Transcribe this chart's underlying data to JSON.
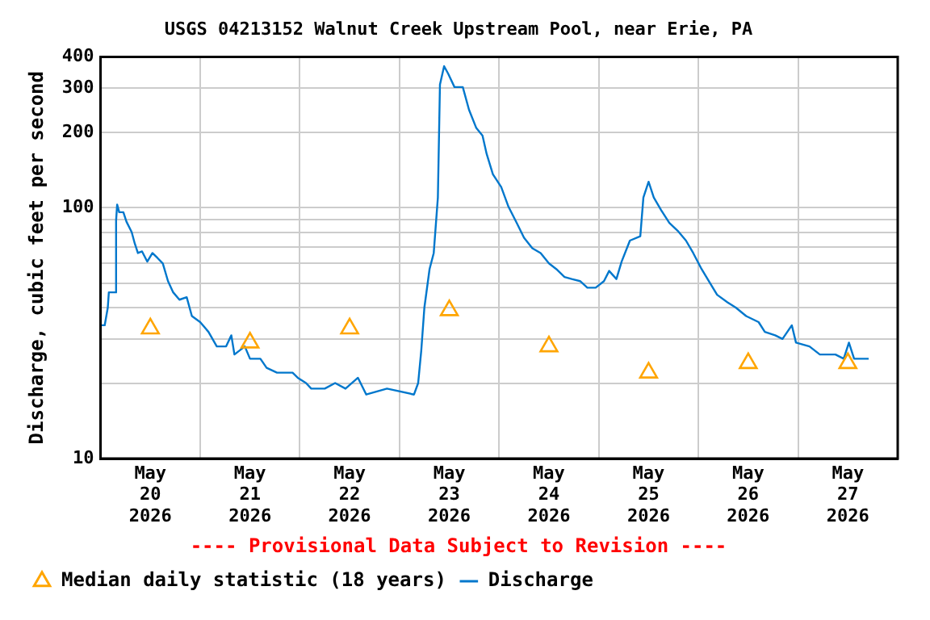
{
  "chart_data": {
    "type": "line",
    "title": "USGS 04213152 Walnut Creek Upstream Pool, near Erie, PA",
    "subtitle": "---- Provisional Data Subject to Revision ----",
    "ylabel": "Discharge, cubic feet per second",
    "log": true,
    "grid": true,
    "legend": "bottom",
    "ylim": [
      10,
      400
    ],
    "yticks": [
      10,
      {
        "value": 20,
        "label": null
      },
      {
        "value": 30,
        "label": null
      },
      {
        "value": 40,
        "label": null
      },
      {
        "value": 50,
        "label": null
      },
      {
        "value": 60,
        "label": null
      },
      {
        "value": 70,
        "label": null
      },
      {
        "value": 80,
        "label": null
      },
      {
        "value": 90,
        "label": null
      },
      100,
      200,
      300,
      400
    ],
    "xlim": [
      "2026-05-20T00:00",
      "2026-05-28T00:00"
    ],
    "xticks": [
      {
        "value": "2026-05-20T00:00",
        "label": null
      },
      {
        "value": "2026-05-20T12:00",
        "label": "May 20 2026"
      },
      {
        "value": "2026-05-21T00:00",
        "label": null
      },
      {
        "value": "2026-05-21T12:00",
        "label": "May 21 2026"
      },
      {
        "value": "2026-05-22T00:00",
        "label": null
      },
      {
        "value": "2026-05-22T12:00",
        "label": "May 22 2026"
      },
      {
        "value": "2026-05-23T00:00",
        "label": null
      },
      {
        "value": "2026-05-23T12:00",
        "label": "May 23 2026"
      },
      {
        "value": "2026-05-24T00:00",
        "label": null
      },
      {
        "value": "2026-05-24T12:00",
        "label": "May 24 2026"
      },
      {
        "value": "2026-05-25T00:00",
        "label": null
      },
      {
        "value": "2026-05-25T12:00",
        "label": "May 25 2026"
      },
      {
        "value": "2026-05-26T00:00",
        "label": null
      },
      {
        "value": "2026-05-26T12:00",
        "label": "May 26 2026"
      },
      {
        "value": "2026-05-27T00:00",
        "label": null
      },
      {
        "value": "2026-05-27T12:00",
        "label": "May 27 2026"
      },
      {
        "value": "2026-05-28T00:00",
        "label": null
      }
    ],
    "series": [
      {
        "name": "Median daily statistic (18 years)",
        "type": "scatter",
        "marker": "triangle",
        "color": "#ffa500",
        "x": [
          "2026-05-20T12:00",
          "2026-05-21T12:00",
          "2026-05-22T12:00",
          "2026-05-23T12:00",
          "2026-05-24T12:00",
          "2026-05-25T12:00",
          "2026-05-26T12:00",
          "2026-05-27T12:00"
        ],
        "values": [
          33,
          29,
          33,
          39,
          28,
          22,
          24,
          24
        ]
      },
      {
        "name": "Discharge",
        "marker": "none",
        "line_style": "solid",
        "color": "#0077cc",
        "x": [
          "2026-05-20T00:00",
          "2026-05-20T01:00",
          "2026-05-20T01:45",
          "2026-05-20T02:00",
          "2026-05-20T03:30",
          "2026-05-20T03:45",
          "2026-05-20T04:00",
          "2026-05-20T04:30",
          "2026-05-20T05:30",
          "2026-05-20T06:15",
          "2026-05-20T07:30",
          "2026-05-20T08:15",
          "2026-05-20T09:00",
          "2026-05-20T10:00",
          "2026-05-20T11:15",
          "2026-05-20T12:30",
          "2026-05-20T13:45",
          "2026-05-20T15:00",
          "2026-05-20T16:15",
          "2026-05-20T17:30",
          "2026-05-20T19:00",
          "2026-05-20T20:45",
          "2026-05-20T22:00",
          "2026-05-21T00:00",
          "2026-05-21T02:00",
          "2026-05-21T04:00",
          "2026-05-21T06:15",
          "2026-05-21T07:30",
          "2026-05-21T08:15",
          "2026-05-21T10:45",
          "2026-05-21T12:00",
          "2026-05-21T14:30",
          "2026-05-21T16:00",
          "2026-05-21T18:30",
          "2026-05-21T22:15",
          "2026-05-21T23:30",
          "2026-05-22T01:30",
          "2026-05-22T02:45",
          "2026-05-22T06:00",
          "2026-05-22T08:30",
          "2026-05-22T11:00",
          "2026-05-22T14:00",
          "2026-05-22T16:00",
          "2026-05-22T21:00",
          "2026-05-23T03:30",
          "2026-05-23T04:30",
          "2026-05-23T05:15",
          "2026-05-23T06:00",
          "2026-05-23T07:15",
          "2026-05-23T08:15",
          "2026-05-23T09:15",
          "2026-05-23T09:45",
          "2026-05-23T10:45",
          "2026-05-23T11:45",
          "2026-05-23T13:15",
          "2026-05-23T15:15",
          "2026-05-23T16:45",
          "2026-05-23T18:30",
          "2026-05-23T20:00",
          "2026-05-23T21:00",
          "2026-05-23T22:30",
          "2026-05-24T00:30",
          "2026-05-24T02:15",
          "2026-05-24T04:15",
          "2026-05-24T06:00",
          "2026-05-24T08:00",
          "2026-05-24T10:00",
          "2026-05-24T12:00",
          "2026-05-24T13:45",
          "2026-05-24T15:45",
          "2026-05-24T17:30",
          "2026-05-24T19:30",
          "2026-05-24T21:15",
          "2026-05-24T23:15",
          "2026-05-25T01:15",
          "2026-05-25T02:30",
          "2026-05-25T04:15",
          "2026-05-25T05:30",
          "2026-05-25T07:30",
          "2026-05-25T10:00",
          "2026-05-25T10:45",
          "2026-05-25T12:00",
          "2026-05-25T13:15",
          "2026-05-25T15:00",
          "2026-05-25T17:00",
          "2026-05-25T19:00",
          "2026-05-25T21:00",
          "2026-05-25T22:45",
          "2026-05-26T00:45",
          "2026-05-26T02:30",
          "2026-05-26T04:30",
          "2026-05-26T07:00",
          "2026-05-26T09:00",
          "2026-05-26T11:30",
          "2026-05-26T14:30",
          "2026-05-26T16:00",
          "2026-05-26T18:30",
          "2026-05-26T20:15",
          "2026-05-26T22:30",
          "2026-05-26T23:30",
          "2026-05-27T02:45",
          "2026-05-27T05:15",
          "2026-05-27T09:00",
          "2026-05-27T11:00",
          "2026-05-27T12:15",
          "2026-05-27T13:30",
          "2026-05-27T15:30",
          "2026-05-27T17:00"
        ],
        "values": [
          34,
          34,
          40,
          46,
          46,
          89,
          103,
          96,
          96,
          88,
          80,
          72,
          66,
          67,
          61,
          66,
          63,
          60,
          51,
          46,
          43,
          44,
          37,
          35,
          32,
          28,
          28,
          31,
          26,
          28,
          25,
          25,
          23,
          22,
          22,
          21,
          20,
          19,
          19,
          20,
          19,
          21,
          18,
          19,
          18,
          20,
          27,
          40,
          57,
          66,
          110,
          310,
          367,
          342,
          303,
          303,
          246,
          208,
          194,
          164,
          136,
          121,
          101,
          87,
          76,
          69,
          66,
          60,
          57,
          53,
          52,
          51,
          48,
          48,
          51,
          56,
          52,
          61,
          74,
          77,
          110,
          127,
          110,
          98,
          87,
          81,
          74,
          66,
          57,
          51,
          45,
          42,
          40,
          37,
          35,
          32,
          31,
          30,
          34,
          29,
          28,
          26,
          26,
          25,
          29,
          25,
          25,
          25
        ]
      }
    ]
  }
}
